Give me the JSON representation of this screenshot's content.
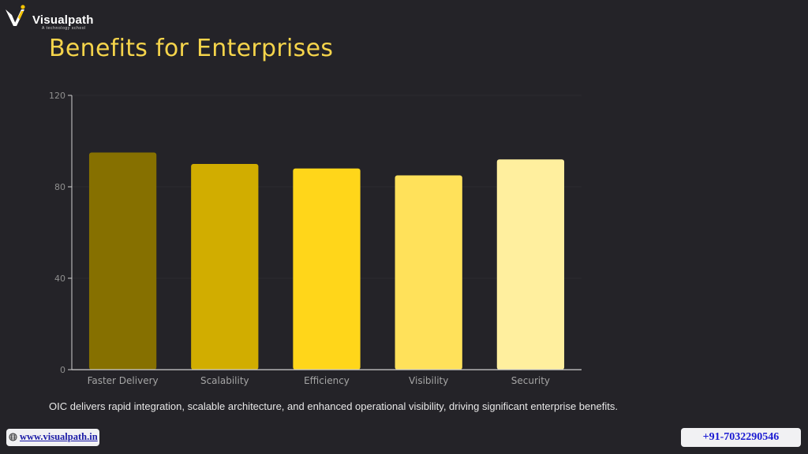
{
  "brand": {
    "name": "Visualpath",
    "tagline": "A technology school",
    "colors": {
      "logo_primary": "#ffffff",
      "logo_accent": "#f5c300"
    }
  },
  "page": {
    "title": "Benefits for Enterprises"
  },
  "chart_data": {
    "type": "bar",
    "title": "",
    "xlabel": "",
    "ylabel": "",
    "categories": [
      "Faster Delivery",
      "Scalability",
      "Efficiency",
      "Visibility",
      "Security"
    ],
    "values": [
      95,
      90,
      88,
      85,
      92
    ],
    "colors": [
      "#867000",
      "#d1ad00",
      "#ffd61a",
      "#ffe15a",
      "#ffef9e"
    ],
    "ylim": [
      0,
      120
    ],
    "yticks": [
      0,
      40,
      80,
      120
    ],
    "grid": true,
    "legend": "none"
  },
  "caption": "OIC delivers rapid integration, scalable architecture, and enhanced operational visibility, driving significant enterprise benefits.",
  "footer": {
    "website": "www.visualpath.in",
    "phone": "+91-7032290546",
    "icons": {
      "website": "globe-icon"
    }
  }
}
